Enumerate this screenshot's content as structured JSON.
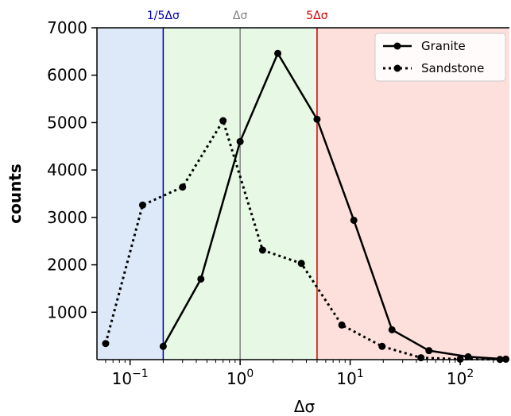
{
  "chart_data": {
    "type": "line",
    "xlabel": "Δσ",
    "ylabel": "counts",
    "x_scale": "log",
    "xlim": [
      0.05,
      280
    ],
    "ylim": [
      0,
      7000
    ],
    "yticks": [
      {
        "value": 1000,
        "label": "1000"
      },
      {
        "value": 2000,
        "label": "2000"
      },
      {
        "value": 3000,
        "label": "3000"
      },
      {
        "value": 4000,
        "label": "4000"
      },
      {
        "value": 5000,
        "label": "5000"
      },
      {
        "value": 6000,
        "label": "6000"
      },
      {
        "value": 7000,
        "label": "7000"
      }
    ],
    "xticks": [
      {
        "value": 0.1,
        "base": "10",
        "exp": "−1"
      },
      {
        "value": 1,
        "base": "10",
        "exp": "0"
      },
      {
        "value": 10,
        "base": "10",
        "exp": "1"
      },
      {
        "value": 100,
        "base": "10",
        "exp": "2"
      }
    ],
    "regions": [
      {
        "from": 0.05,
        "to": 0.2,
        "color": "#dde8f8"
      },
      {
        "from": 0.2,
        "to": 5,
        "color": "#e7f8e5"
      },
      {
        "from": 5,
        "to": 280,
        "color": "#fde0dc"
      }
    ],
    "vlines": [
      {
        "x": 0.2,
        "label": "1/5Δσ",
        "color": "#0000b4"
      },
      {
        "x": 1,
        "label": "Δσ",
        "color": "#808080"
      },
      {
        "x": 5,
        "label": "5Δσ",
        "color": "#d40000"
      }
    ],
    "series": [
      {
        "name": "Granite",
        "style": "solid",
        "color": "#000000",
        "points": [
          [
            0.2,
            280
          ],
          [
            0.44,
            1700
          ],
          [
            1,
            4600
          ],
          [
            2.2,
            6460
          ],
          [
            5,
            5070
          ],
          [
            10.8,
            2940
          ],
          [
            24,
            630
          ],
          [
            52,
            190
          ],
          [
            118,
            60
          ],
          [
            260,
            10
          ]
        ]
      },
      {
        "name": "Sandstone",
        "style": "dotted",
        "color": "#000000",
        "points": [
          [
            0.06,
            340
          ],
          [
            0.13,
            3260
          ],
          [
            0.3,
            3640
          ],
          [
            0.7,
            5040
          ],
          [
            1.6,
            2310
          ],
          [
            3.6,
            2030
          ],
          [
            8.4,
            730
          ],
          [
            19.5,
            280
          ],
          [
            44,
            40
          ],
          [
            100,
            10
          ],
          [
            230,
            5
          ]
        ]
      }
    ],
    "legend_position": "top-right"
  }
}
